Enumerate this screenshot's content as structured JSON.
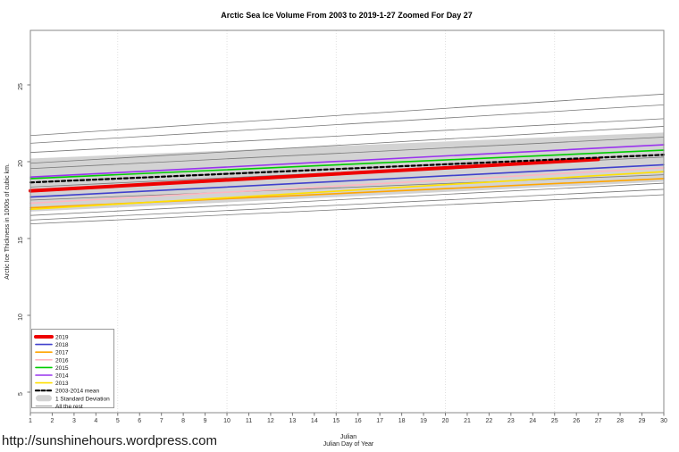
{
  "page": {
    "url_watermark": "http://sunshinehours.wordpress.com"
  },
  "chart_data": {
    "type": "line",
    "title": "Arctic Sea Ice Volume From 2003 to 2019-1-27 Zoomed For Day 27",
    "xlabel_line1": "Julian",
    "xlabel_line2": "Julian Day of Year",
    "ylabel": "Arctic Ice Thickness in 1000s of cubic km.",
    "xlim": [
      1,
      30
    ],
    "ylim": [
      3.6,
      28.5
    ],
    "x_ticks": [
      1,
      2,
      3,
      4,
      5,
      6,
      7,
      8,
      9,
      10,
      11,
      12,
      13,
      14,
      15,
      16,
      17,
      18,
      19,
      20,
      21,
      22,
      23,
      24,
      25,
      26,
      27,
      28,
      29,
      30
    ],
    "y_ticks": [
      5,
      10,
      15,
      20,
      25
    ],
    "grid_days": [
      5,
      10,
      15,
      20,
      25,
      30
    ],
    "colors": {
      "grid": "#d9d9d9",
      "axis": "#888888",
      "tick": "#777777",
      "band_fill": "#d3d3d3",
      "rest_line": "#787878"
    },
    "series": [
      {
        "name": "2019",
        "color": "#ee0000",
        "width": 4,
        "x": [
          1,
          27
        ],
        "values": [
          18.1,
          20.15
        ]
      },
      {
        "name": "2018",
        "color": "#4040cc",
        "width": 1.6,
        "x": [
          1,
          30
        ],
        "values": [
          17.7,
          19.8
        ]
      },
      {
        "name": "2017",
        "color": "#ffa500",
        "width": 1.6,
        "x": [
          1,
          30
        ],
        "values": [
          17.0,
          18.9
        ]
      },
      {
        "name": "2016",
        "color": "#ffb6c1",
        "width": 1.6,
        "x": [
          1,
          30
        ],
        "values": [
          17.3,
          19.6
        ]
      },
      {
        "name": "2015",
        "color": "#00cc00",
        "width": 1.6,
        "x": [
          1,
          30
        ],
        "values": [
          18.9,
          20.75
        ]
      },
      {
        "name": "2014",
        "color": "#9933ee",
        "width": 1.6,
        "x": [
          1,
          30
        ],
        "values": [
          19.0,
          21.1
        ]
      },
      {
        "name": "2013",
        "color": "#ffe000",
        "width": 1.6,
        "x": [
          1,
          30
        ],
        "values": [
          16.9,
          19.35
        ]
      },
      {
        "name": "2003-2014 mean",
        "color": "#000000",
        "width": 2.2,
        "dash": "4,3",
        "x": [
          1,
          30
        ],
        "values": [
          18.65,
          20.45
        ]
      }
    ],
    "band": {
      "name": "1 Standard Deviation",
      "x": [
        1,
        30
      ],
      "top": [
        20.2,
        21.9
      ],
      "bottom": [
        16.75,
        18.7
      ]
    },
    "rest": {
      "name": "All the rest",
      "width": 0.8,
      "lines": [
        [
          21.7,
          24.4
        ],
        [
          21.2,
          23.7
        ],
        [
          20.6,
          22.8
        ],
        [
          19.9,
          22.3
        ],
        [
          19.55,
          21.6
        ],
        [
          18.35,
          20.3
        ],
        [
          17.5,
          19.15
        ],
        [
          16.5,
          18.6
        ],
        [
          16.2,
          18.2
        ],
        [
          15.95,
          17.85
        ]
      ]
    },
    "legend": [
      {
        "label": "2019",
        "swatch": "thickline",
        "color": "#ee0000"
      },
      {
        "label": "2018",
        "swatch": "line",
        "color": "#4040cc"
      },
      {
        "label": "2017",
        "swatch": "line",
        "color": "#ffa500"
      },
      {
        "label": "2016",
        "swatch": "line",
        "color": "#ffb6c1"
      },
      {
        "label": "2015",
        "swatch": "line",
        "color": "#00cc00"
      },
      {
        "label": "2014",
        "swatch": "line",
        "color": "#9933ee"
      },
      {
        "label": "2013",
        "swatch": "line",
        "color": "#ffe000"
      },
      {
        "label": "2003-2014 mean",
        "swatch": "dash",
        "color": "#000000"
      },
      {
        "label": "1 Standard Deviation",
        "swatch": "band",
        "color": "#d3d3d3"
      },
      {
        "label": "All the rest",
        "swatch": "thin",
        "color": "#787878"
      }
    ]
  }
}
